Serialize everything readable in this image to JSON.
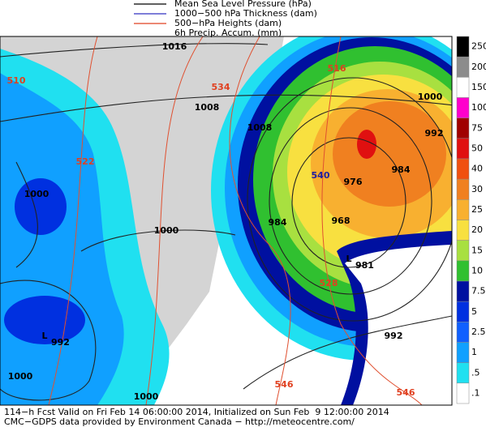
{
  "legend": {
    "items": [
      {
        "label": "Mean Sea Level Pressure (hPa)",
        "color": "#000000"
      },
      {
        "label": "1000−500 hPa Thickness (dam)",
        "color": "#3030c0"
      },
      {
        "label": "500−hPa Heights (dam)",
        "color": "#e04020"
      },
      {
        "label": "6h Precip. Accum. (mm)",
        "color": null
      }
    ]
  },
  "colorbar": {
    "labels": [
      "250",
      "200",
      "150",
      "100",
      "75",
      "50",
      "40",
      "30",
      "25",
      "20",
      "15",
      "10",
      "7.5",
      "5",
      "2.5",
      "1",
      ".5",
      ".1"
    ],
    "colors": [
      "#000000",
      "#8c8c8c",
      "#ffffff",
      "#ff00cc",
      "#a00000",
      "#e01010",
      "#f05010",
      "#f08020",
      "#f8b030",
      "#f8e040",
      "#a8e040",
      "#30c030",
      "#0010a0",
      "#0030e0",
      "#1060ff",
      "#10a0ff",
      "#20e0f0",
      "#ffffff"
    ]
  },
  "map": {
    "contour_labels": [
      {
        "text": "1016",
        "color": "#000000"
      },
      {
        "text": "1008",
        "color": "#000000"
      },
      {
        "text": "1008",
        "color": "#000000"
      },
      {
        "text": "1000",
        "color": "#000000"
      },
      {
        "text": "992",
        "color": "#000000"
      },
      {
        "text": "984",
        "color": "#000000"
      },
      {
        "text": "976",
        "color": "#000000"
      },
      {
        "text": "968",
        "color": "#000000"
      },
      {
        "text": "984",
        "color": "#000000"
      },
      {
        "text": "1000",
        "color": "#000000"
      },
      {
        "text": "1000",
        "color": "#000000"
      },
      {
        "text": "992",
        "color": "#000000"
      },
      {
        "text": "1000",
        "color": "#000000"
      },
      {
        "text": "1000",
        "color": "#000000"
      },
      {
        "text": "540",
        "color": "#2020a0"
      },
      {
        "text": "534",
        "color": "#e04020"
      },
      {
        "text": "522",
        "color": "#e04020"
      },
      {
        "text": "510",
        "color": "#e04020"
      },
      {
        "text": "516",
        "color": "#e04020"
      },
      {
        "text": "528",
        "color": "#e04020"
      },
      {
        "text": "546",
        "color": "#e04020"
      },
      {
        "text": "546",
        "color": "#e04020"
      }
    ],
    "lows": [
      {
        "symbol": "L",
        "value": "981"
      },
      {
        "symbol": "L",
        "value": "992"
      }
    ]
  },
  "footer": {
    "lines": [
      "114−h Fcst Valid on Fri Feb 14 06:00:00 2014, Initialized on Sun Feb  9 12:00:00 2014",
      "CMC−GDPS data provided by Environment Canada − http://meteocentre.com/"
    ]
  }
}
